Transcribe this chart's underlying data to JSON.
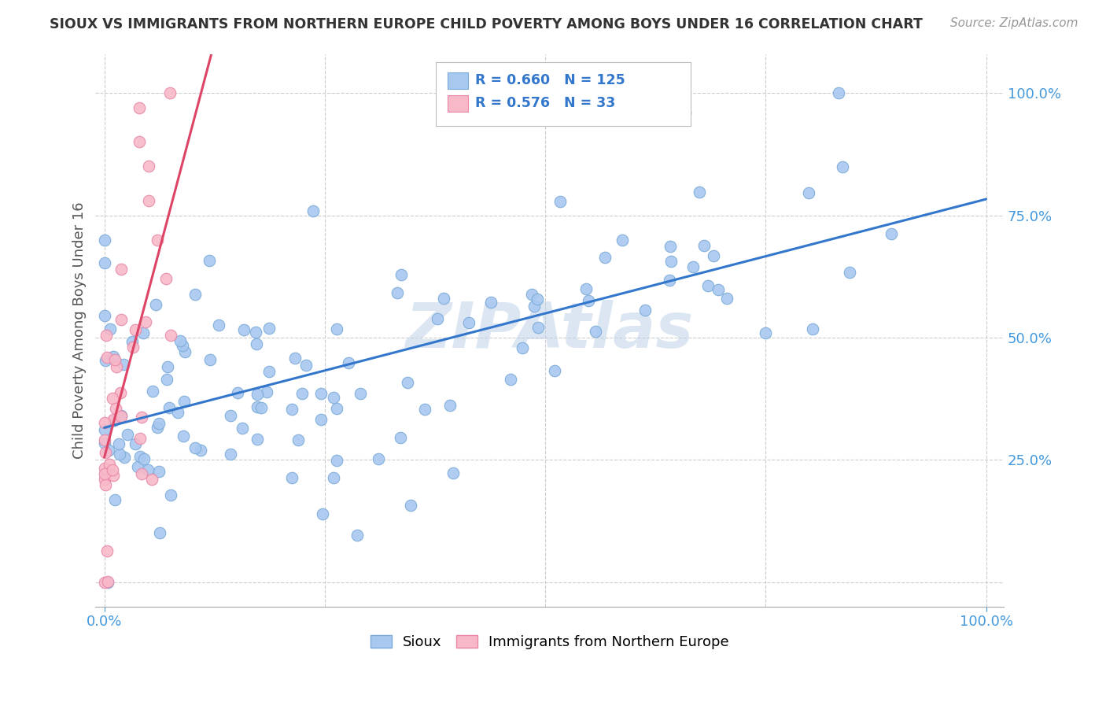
{
  "title": "SIOUX VS IMMIGRANTS FROM NORTHERN EUROPE CHILD POVERTY AMONG BOYS UNDER 16 CORRELATION CHART",
  "source": "Source: ZipAtlas.com",
  "ylabel": "Child Poverty Among Boys Under 16",
  "sioux_R": 0.66,
  "sioux_N": 125,
  "immigrants_R": 0.576,
  "immigrants_N": 33,
  "watermark": "ZIPAtlas",
  "sioux_color": "#a8c8f0",
  "sioux_edge_color": "#7aaad8",
  "immigrants_color": "#f8b8c8",
  "immigrants_edge_color": "#e888a8",
  "line_sioux_color": "#3377cc",
  "line_immigrants_color": "#dd4466",
  "background_color": "#ffffff",
  "grid_color": "#cccccc",
  "tick_color": "#4499dd",
  "title_color": "#333333",
  "ylabel_color": "#555555"
}
